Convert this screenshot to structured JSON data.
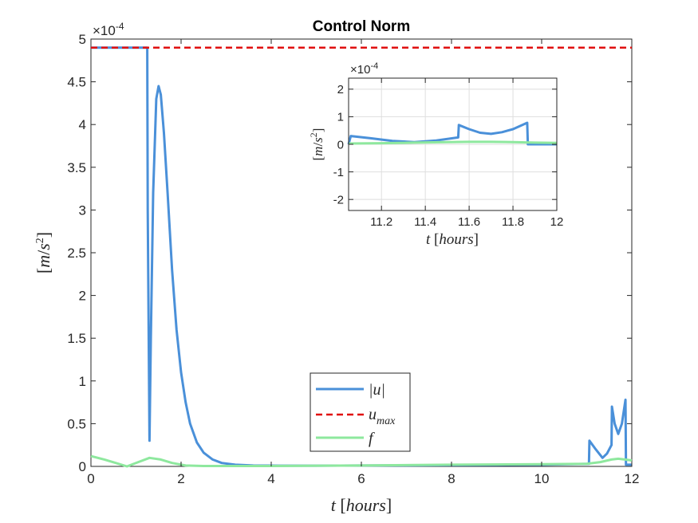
{
  "chart_data": [
    {
      "type": "line",
      "title": "Control Norm",
      "xlabel": "t [hours]",
      "ylabel": "[m/s^2]",
      "y_exponent": "×10^-4",
      "xlim": [
        0,
        12
      ],
      "ylim": [
        0,
        5
      ],
      "xticks": [
        "0",
        "2",
        "4",
        "6",
        "8",
        "10",
        "12"
      ],
      "yticks": [
        "0",
        "0.5",
        "1",
        "1.5",
        "2",
        "2.5",
        "3",
        "3.5",
        "4",
        "4.5",
        "5"
      ],
      "grid": false,
      "legend_position": "lower-center",
      "series": [
        {
          "name": "|u|",
          "color": "#4a90d9",
          "style": "solid",
          "x": [
            0,
            1.25,
            1.26,
            1.3,
            1.33,
            1.38,
            1.45,
            1.5,
            1.55,
            1.62,
            1.7,
            1.8,
            1.9,
            2.0,
            2.1,
            2.2,
            2.35,
            2.5,
            2.7,
            2.9,
            3.2,
            3.6,
            4.2,
            5,
            6,
            7,
            8,
            9,
            10,
            11.05,
            11.06,
            11.2,
            11.35,
            11.45,
            11.55,
            11.56,
            11.62,
            11.7,
            11.78,
            11.86,
            11.87,
            12
          ],
          "y": [
            4.9,
            4.9,
            3.0,
            0.3,
            1.5,
            3.2,
            4.3,
            4.45,
            4.35,
            3.9,
            3.2,
            2.3,
            1.6,
            1.1,
            0.75,
            0.5,
            0.28,
            0.16,
            0.08,
            0.04,
            0.02,
            0.01,
            0.008,
            0.008,
            0.01,
            0.012,
            0.015,
            0.018,
            0.02,
            0.03,
            0.3,
            0.2,
            0.1,
            0.15,
            0.25,
            0.7,
            0.5,
            0.38,
            0.5,
            0.78,
            0.02,
            0.02
          ]
        },
        {
          "name": "u_max",
          "color": "#e01010",
          "style": "dashed",
          "x": [
            0,
            12
          ],
          "y": [
            4.9,
            4.9
          ]
        },
        {
          "name": "f",
          "color": "#8ee89e",
          "style": "solid",
          "x": [
            0,
            0.3,
            0.55,
            0.8,
            1.05,
            1.3,
            1.55,
            1.8,
            2.1,
            2.5,
            3,
            4,
            6,
            8,
            10,
            11.0,
            11.3,
            11.55,
            11.7,
            11.85,
            12
          ],
          "y": [
            0.12,
            0.08,
            0.04,
            0.0,
            0.05,
            0.1,
            0.08,
            0.04,
            0.01,
            0.005,
            0.005,
            0.005,
            0.01,
            0.02,
            0.025,
            0.03,
            0.05,
            0.08,
            0.09,
            0.08,
            0.07
          ]
        }
      ]
    },
    {
      "type": "line",
      "title": "",
      "xlabel": "t [hours]",
      "ylabel": "[m/s^2]",
      "y_exponent": "×10^-4",
      "xlim": [
        11.05,
        12
      ],
      "ylim": [
        -2.4,
        2.4
      ],
      "xticks": [
        "11.2",
        "11.4",
        "11.6",
        "11.8",
        "12"
      ],
      "yticks": [
        "-2",
        "-1",
        "0",
        "1",
        "2"
      ],
      "grid": true,
      "series": [
        {
          "name": "|u|",
          "color": "#4a90d9",
          "x": [
            11.05,
            11.06,
            11.15,
            11.25,
            11.35,
            11.45,
            11.55,
            11.553,
            11.6,
            11.65,
            11.7,
            11.75,
            11.8,
            11.865,
            11.868,
            12
          ],
          "y": [
            0.0,
            0.3,
            0.22,
            0.12,
            0.08,
            0.14,
            0.25,
            0.7,
            0.55,
            0.42,
            0.38,
            0.44,
            0.55,
            0.78,
            0.0,
            0.0
          ]
        },
        {
          "name": "f",
          "color": "#8ee89e",
          "x": [
            11.05,
            11.2,
            11.35,
            11.5,
            11.6,
            11.7,
            11.8,
            11.9,
            12
          ],
          "y": [
            0.03,
            0.04,
            0.06,
            0.08,
            0.09,
            0.09,
            0.08,
            0.06,
            0.05
          ]
        }
      ]
    }
  ],
  "legend": {
    "items": [
      {
        "label": "|u|",
        "color": "#4a90d9",
        "dash": ""
      },
      {
        "label": "u_max",
        "color": "#e01010",
        "dash": "8 5"
      },
      {
        "label": "f",
        "color": "#8ee89e",
        "dash": ""
      }
    ]
  }
}
